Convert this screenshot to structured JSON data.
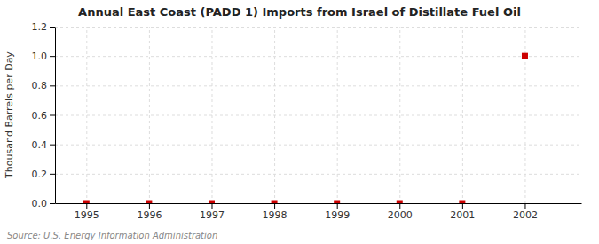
{
  "chart_data": {
    "type": "scatter",
    "title": "Annual East Coast (PADD 1) Imports from Israel of Distillate Fuel Oil",
    "ylabel": "Thousand Barrels per Day",
    "source": "Source: U.S. Energy Information Administration",
    "x": [
      1995,
      1996,
      1997,
      1998,
      1999,
      2000,
      2001,
      2002
    ],
    "values": [
      0,
      0,
      0,
      0,
      0,
      0,
      0,
      1.0
    ],
    "color": "#cc0000",
    "marker": "square",
    "xlim": [
      1994.5,
      2002.9
    ],
    "xticks": [
      1995,
      1996,
      1997,
      1998,
      1999,
      2000,
      2001,
      2002
    ],
    "ylim": [
      0.0,
      1.2
    ],
    "yticks": [
      {
        "value": 0,
        "label": "0.0"
      },
      0.2,
      0.4,
      0.6,
      0.8,
      {
        "value": 1,
        "label": "1.0"
      },
      1.2
    ],
    "grid": true
  }
}
